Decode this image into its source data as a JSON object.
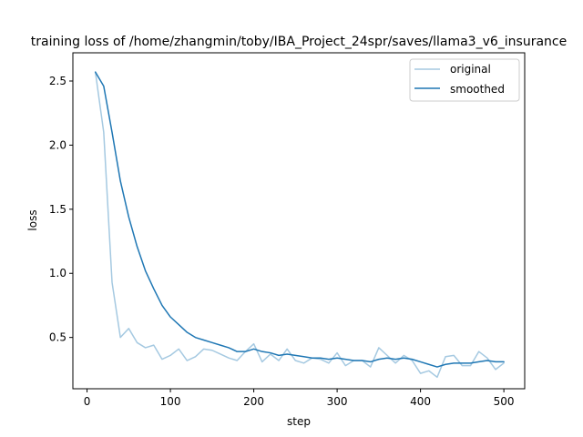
{
  "chart_data": {
    "type": "line",
    "title": "training loss of /home/zhangmin/toby/IBA_Project_24spr/saves/llama3_v6_insurance",
    "xlabel": "step",
    "ylabel": "loss",
    "xlim": [
      -17,
      525
    ],
    "ylim": [
      0.1,
      2.72
    ],
    "x_ticks": [
      0,
      100,
      200,
      300,
      400,
      500
    ],
    "y_ticks": [
      0.5,
      1.0,
      1.5,
      2.0,
      2.5
    ],
    "x_tick_labels": [
      "0",
      "100",
      "200",
      "300",
      "400",
      "500"
    ],
    "y_tick_labels": [
      "0.5",
      "1.0",
      "1.5",
      "2.0",
      "2.5"
    ],
    "grid": false,
    "legend_position": "upper right",
    "x": [
      10,
      20,
      30,
      40,
      50,
      60,
      70,
      80,
      90,
      100,
      110,
      120,
      130,
      140,
      150,
      160,
      170,
      180,
      190,
      200,
      210,
      220,
      230,
      240,
      250,
      260,
      270,
      280,
      290,
      300,
      310,
      320,
      330,
      340,
      350,
      360,
      370,
      380,
      390,
      400,
      410,
      420,
      430,
      440,
      450,
      460,
      470,
      480,
      490,
      500
    ],
    "series": [
      {
        "name": "original",
        "color": "#1f77b4",
        "opacity": 0.4,
        "values": [
          2.57,
          2.1,
          0.93,
          0.5,
          0.57,
          0.46,
          0.42,
          0.44,
          0.33,
          0.36,
          0.41,
          0.32,
          0.35,
          0.41,
          0.4,
          0.37,
          0.34,
          0.32,
          0.39,
          0.45,
          0.31,
          0.37,
          0.32,
          0.41,
          0.32,
          0.3,
          0.34,
          0.33,
          0.3,
          0.38,
          0.28,
          0.32,
          0.32,
          0.27,
          0.42,
          0.36,
          0.3,
          0.36,
          0.32,
          0.22,
          0.24,
          0.19,
          0.35,
          0.36,
          0.28,
          0.28,
          0.39,
          0.34,
          0.25,
          0.3
        ]
      },
      {
        "name": "smoothed",
        "color": "#1f77b4",
        "opacity": 1.0,
        "values": [
          2.57,
          2.46,
          2.1,
          1.72,
          1.44,
          1.21,
          1.02,
          0.88,
          0.75,
          0.66,
          0.6,
          0.54,
          0.5,
          0.48,
          0.46,
          0.44,
          0.42,
          0.39,
          0.39,
          0.41,
          0.39,
          0.38,
          0.36,
          0.37,
          0.36,
          0.35,
          0.34,
          0.34,
          0.33,
          0.34,
          0.33,
          0.32,
          0.32,
          0.31,
          0.33,
          0.34,
          0.33,
          0.34,
          0.33,
          0.31,
          0.29,
          0.27,
          0.29,
          0.3,
          0.3,
          0.3,
          0.31,
          0.32,
          0.31,
          0.31
        ]
      }
    ]
  }
}
